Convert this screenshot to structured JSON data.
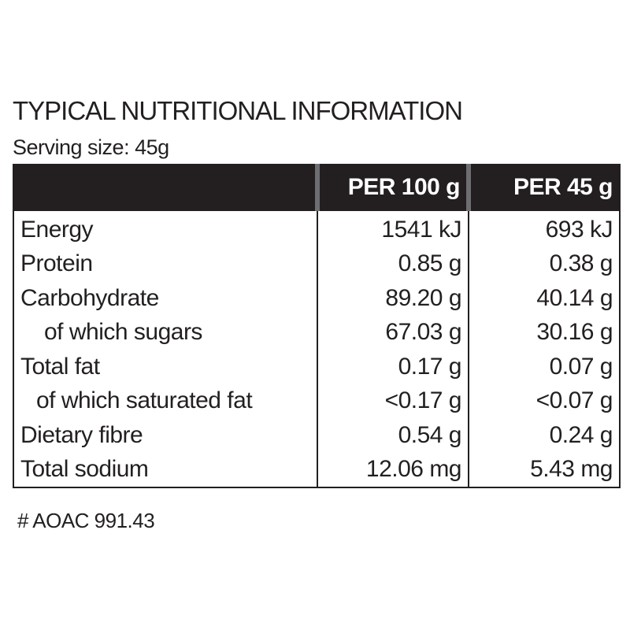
{
  "header": {
    "title": "TYPICAL NUTRITIONAL INFORMATION",
    "serving": "Serving size: 45g"
  },
  "table": {
    "columns": [
      "PER 100 g",
      "PER 45 g"
    ],
    "rows": [
      [
        "Energy",
        "1541 kJ",
        "693 kJ"
      ],
      [
        "Protein",
        "0.85 g",
        "0.38 g"
      ],
      [
        "Carbohydrate",
        "89.20 g",
        "40.14 g"
      ],
      [
        "of which sugars",
        "67.03 g",
        "30.16 g"
      ],
      [
        "Total fat",
        "0.17 g",
        "0.07 g"
      ],
      [
        "of which saturated fat",
        "<0.17 g",
        "<0.07 g"
      ],
      [
        "Dietary fibre",
        "0.54 g",
        "0.24 g"
      ],
      [
        "Total sodium",
        "12.06 mg",
        "5.43 mg"
      ]
    ]
  },
  "footnote": "# AOAC 991.43"
}
